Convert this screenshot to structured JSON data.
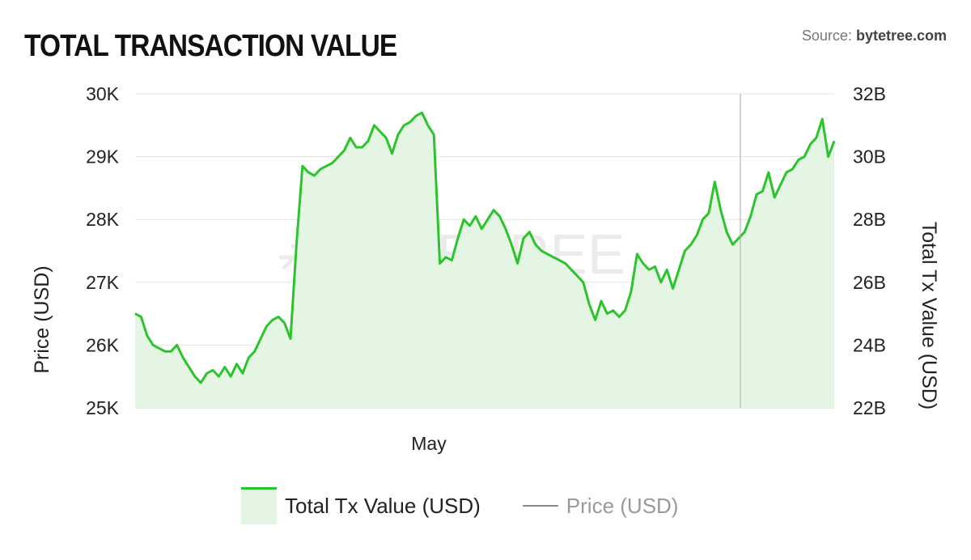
{
  "header": {
    "title": "TOTAL TRANSACTION VALUE",
    "source_prefix": "Source: ",
    "source_name": "bytetree.com"
  },
  "watermark": "BYTETREE",
  "chart_data": {
    "type": "line",
    "title": "TOTAL TRANSACTION VALUE",
    "x_tick_labels": [
      "May"
    ],
    "y_left": {
      "label": "Price (USD)",
      "range": [
        25000,
        30000
      ],
      "ticks": [
        "25K",
        "26K",
        "27K",
        "28K",
        "29K",
        "30K"
      ]
    },
    "y_right": {
      "label": "Total Tx Value (USD)",
      "range": [
        22,
        32
      ],
      "ticks": [
        "22B",
        "24B",
        "26B",
        "28B",
        "30B",
        "32B"
      ]
    },
    "grid": true,
    "legend_position": "bottom",
    "series": [
      {
        "name": "Total Tx Value (USD)",
        "type": "area",
        "axis": "right",
        "color": "#2cc42c",
        "fill": "#e4f5e4",
        "values_B": [
          25.0,
          24.9,
          24.3,
          24.0,
          23.9,
          23.8,
          23.8,
          24.0,
          23.6,
          23.3,
          23.0,
          22.8,
          23.1,
          23.2,
          23.0,
          23.3,
          23.0,
          23.4,
          23.1,
          23.6,
          23.8,
          24.2,
          24.6,
          24.8,
          24.9,
          24.7,
          24.2,
          27.2,
          29.7,
          29.5,
          29.4,
          29.6,
          29.7,
          29.8,
          30.0,
          30.2,
          30.6,
          30.3,
          30.3,
          30.5,
          31.0,
          30.8,
          30.6,
          30.1,
          30.7,
          31.0,
          31.1,
          31.3,
          31.4,
          31.0,
          30.7,
          26.6,
          26.8,
          26.7,
          27.4,
          28.0,
          27.8,
          28.1,
          27.7,
          28.0,
          28.3,
          28.1,
          27.7,
          27.2,
          26.6,
          27.4,
          27.6,
          27.2,
          27.0,
          26.9,
          26.8,
          26.7,
          26.6,
          26.4,
          26.2,
          26.0,
          25.3,
          24.8,
          25.4,
          25.0,
          25.1,
          24.9,
          25.1,
          25.7,
          26.9,
          26.6,
          26.4,
          26.5,
          26.0,
          26.4,
          25.8,
          26.4,
          27.0,
          27.2,
          27.5,
          28.0,
          28.2,
          29.2,
          28.3,
          27.6,
          27.2,
          27.4,
          27.6,
          28.1,
          28.8,
          28.9,
          29.5,
          28.7,
          29.1,
          29.5,
          29.6,
          29.9,
          30.0,
          30.4,
          30.6,
          31.2,
          30.0,
          30.5
        ]
      },
      {
        "name": "Price (USD)",
        "type": "line",
        "axis": "left",
        "color": "#888888",
        "values": []
      }
    ]
  }
}
